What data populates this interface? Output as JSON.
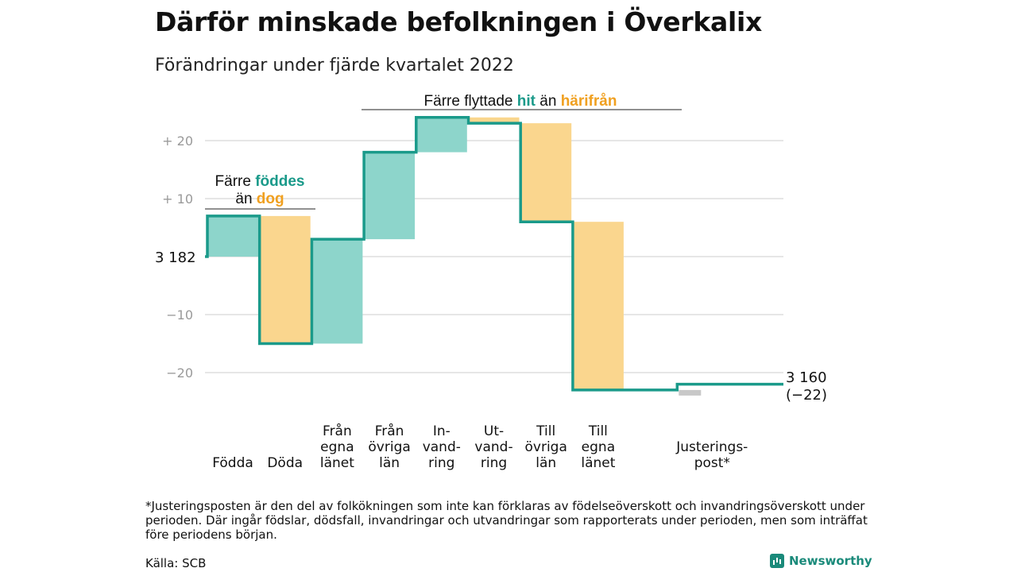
{
  "title": "Därför minskade befolkningen i Överkalix",
  "subtitle": "Förändringar under fjärde kvartalet 2022",
  "annotations": {
    "births_prefix": "Färre ",
    "births_highlight": "föddes",
    "births_line2_prefix": "än ",
    "births_line2_highlight": "dog",
    "moves_prefix": "Färre flyttade ",
    "moves_highlight1": "hit",
    "moves_middle": " än ",
    "moves_highlight2": "härifrån"
  },
  "start_label": "3 182",
  "end_label": "3 160",
  "end_change_label": "(−22)",
  "footnote": "*Justeringsposten är den del av folkökningen som inte kan förklaras av födelseöverskott och invandringsöverskott under perioden. Där ingår födslar, dödsfall, invandringar och utvandringar som rapporterats under perioden, men som inträffat före periodens början.",
  "source": "Källa: SCB",
  "brand": "Newsworthy",
  "colors": {
    "increase": "#8dd5cb",
    "decrease": "#fad68e",
    "adjustment": "#c8c8c8",
    "line": "#1a9a8a",
    "highlight_teal": "#1a9a8a",
    "highlight_orange": "#f0a020"
  },
  "chart_data": {
    "type": "waterfall",
    "start_value": 3182,
    "end_value": 3160,
    "total_change": -22,
    "ylim": [
      -24,
      25
    ],
    "yticks": [
      -20,
      -10,
      10,
      20
    ],
    "ytick_labels": [
      "−20",
      "−10",
      "+ 10",
      "+ 20"
    ],
    "grid": true,
    "steps": [
      {
        "category": [
          "Födda"
        ],
        "change": 7,
        "kind": "increase"
      },
      {
        "category": [
          "Döda"
        ],
        "change": -22,
        "kind": "decrease"
      },
      {
        "category": [
          "Från",
          "egna",
          "länet"
        ],
        "change": 18,
        "kind": "increase"
      },
      {
        "category": [
          "Från",
          "övriga",
          "län"
        ],
        "change": 15,
        "kind": "increase"
      },
      {
        "category": [
          "In-",
          "vand-",
          "ring"
        ],
        "change": 6,
        "kind": "increase"
      },
      {
        "category": [
          "Ut-",
          "vand-",
          "ring"
        ],
        "change": -1,
        "kind": "decrease"
      },
      {
        "category": [
          "Till",
          "övriga",
          "län"
        ],
        "change": -17,
        "kind": "decrease"
      },
      {
        "category": [
          "Till",
          "egna",
          "länet"
        ],
        "change": -29,
        "kind": "decrease"
      },
      {
        "category": [],
        "change": 0,
        "kind": "none"
      },
      {
        "category": [
          "Justerings-",
          "post*"
        ],
        "change": 1,
        "kind": "adjustment"
      }
    ]
  }
}
